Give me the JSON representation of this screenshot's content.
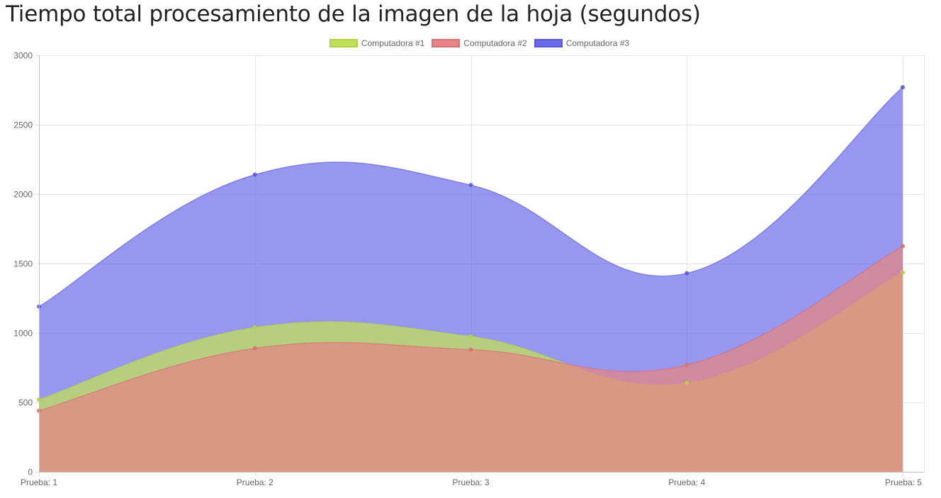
{
  "page": {
    "title": "Tiempo total procesamiento de la imagen de la hoja (segundos)"
  },
  "chart_data": {
    "type": "area",
    "title": "Tiempo total procesamiento de la imagen de la hoja (segundos)",
    "xlabel": "",
    "ylabel": "",
    "categories": [
      "Prueba: 1",
      "Prueba: 2",
      "Prueba: 3",
      "Prueba: 4",
      "Prueba: 5"
    ],
    "y_ticks": [
      "0",
      "500",
      "1000",
      "1500",
      "2000",
      "2500",
      "3000"
    ],
    "ylim": [
      0,
      3000
    ],
    "grid": true,
    "legend_position": "top-center",
    "series": [
      {
        "name": "Computadora #1",
        "values": [
          520,
          1040,
          975,
          640,
          1435
        ],
        "fill": "#c2df5a",
        "stroke": "#b3d445"
      },
      {
        "name": "Computadora #2",
        "values": [
          440,
          890,
          880,
          770,
          1625
        ],
        "fill": "#e38585",
        "stroke": "#d87272"
      },
      {
        "name": "Computadora #3",
        "values": [
          1190,
          2140,
          2065,
          1430,
          2770
        ],
        "fill": "#6b6be8",
        "stroke": "#5a5ad6"
      }
    ]
  }
}
